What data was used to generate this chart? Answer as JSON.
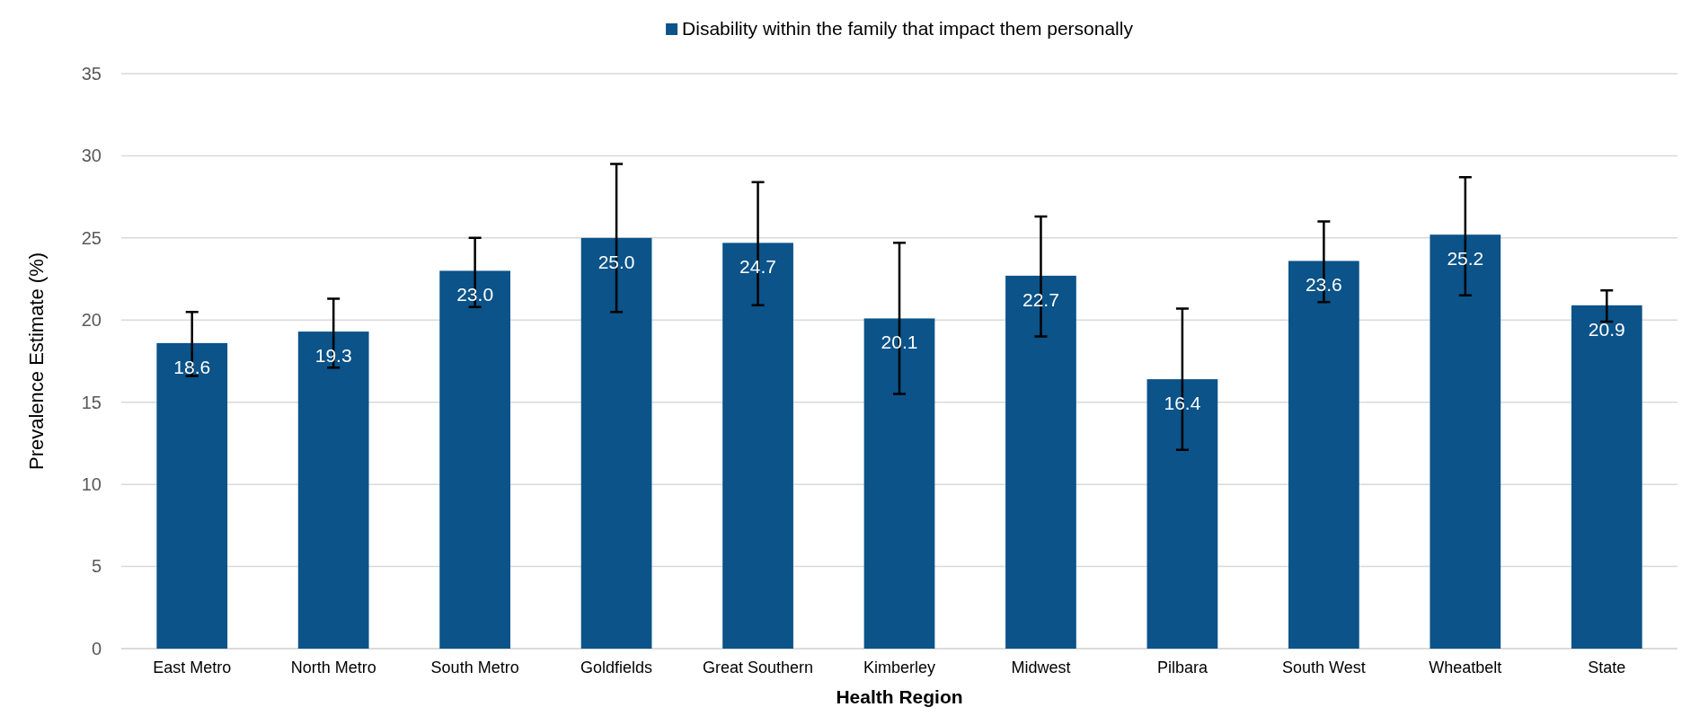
{
  "chart_data": {
    "type": "bar",
    "xlabel": "Health Region",
    "ylabel": "Prevalence Estimate (%)",
    "categories": [
      "East Metro",
      "North Metro",
      "South Metro",
      "Goldfields",
      "Great Southern",
      "Kimberley",
      "Midwest",
      "Pilbara",
      "South West",
      "Wheatbelt",
      "State"
    ],
    "series": [
      {
        "name": "Disability within the family that impact them personally",
        "color": "#0b5389",
        "values": [
          18.6,
          19.3,
          23.0,
          25.0,
          24.7,
          20.1,
          22.7,
          16.4,
          23.6,
          25.2,
          20.9
        ],
        "errors": [
          [
            16.6,
            20.5
          ],
          [
            17.1,
            21.3
          ],
          [
            20.8,
            25.0
          ],
          [
            20.5,
            29.5
          ],
          [
            20.9,
            28.4
          ],
          [
            15.5,
            24.7
          ],
          [
            19.0,
            26.3
          ],
          [
            12.1,
            20.7
          ],
          [
            21.1,
            26.0
          ],
          [
            21.5,
            28.7
          ],
          [
            19.9,
            21.8
          ]
        ],
        "value_labels": [
          "18.6",
          "19.3",
          "23.0",
          "25.0",
          "24.7",
          "20.1",
          "22.7",
          "16.4",
          "23.6",
          "25.2",
          "20.9"
        ]
      }
    ],
    "ylim": [
      0,
      35
    ],
    "yticks": [
      0,
      5,
      10,
      15,
      20,
      25,
      30,
      35
    ],
    "grid": "y",
    "legend": "top"
  }
}
